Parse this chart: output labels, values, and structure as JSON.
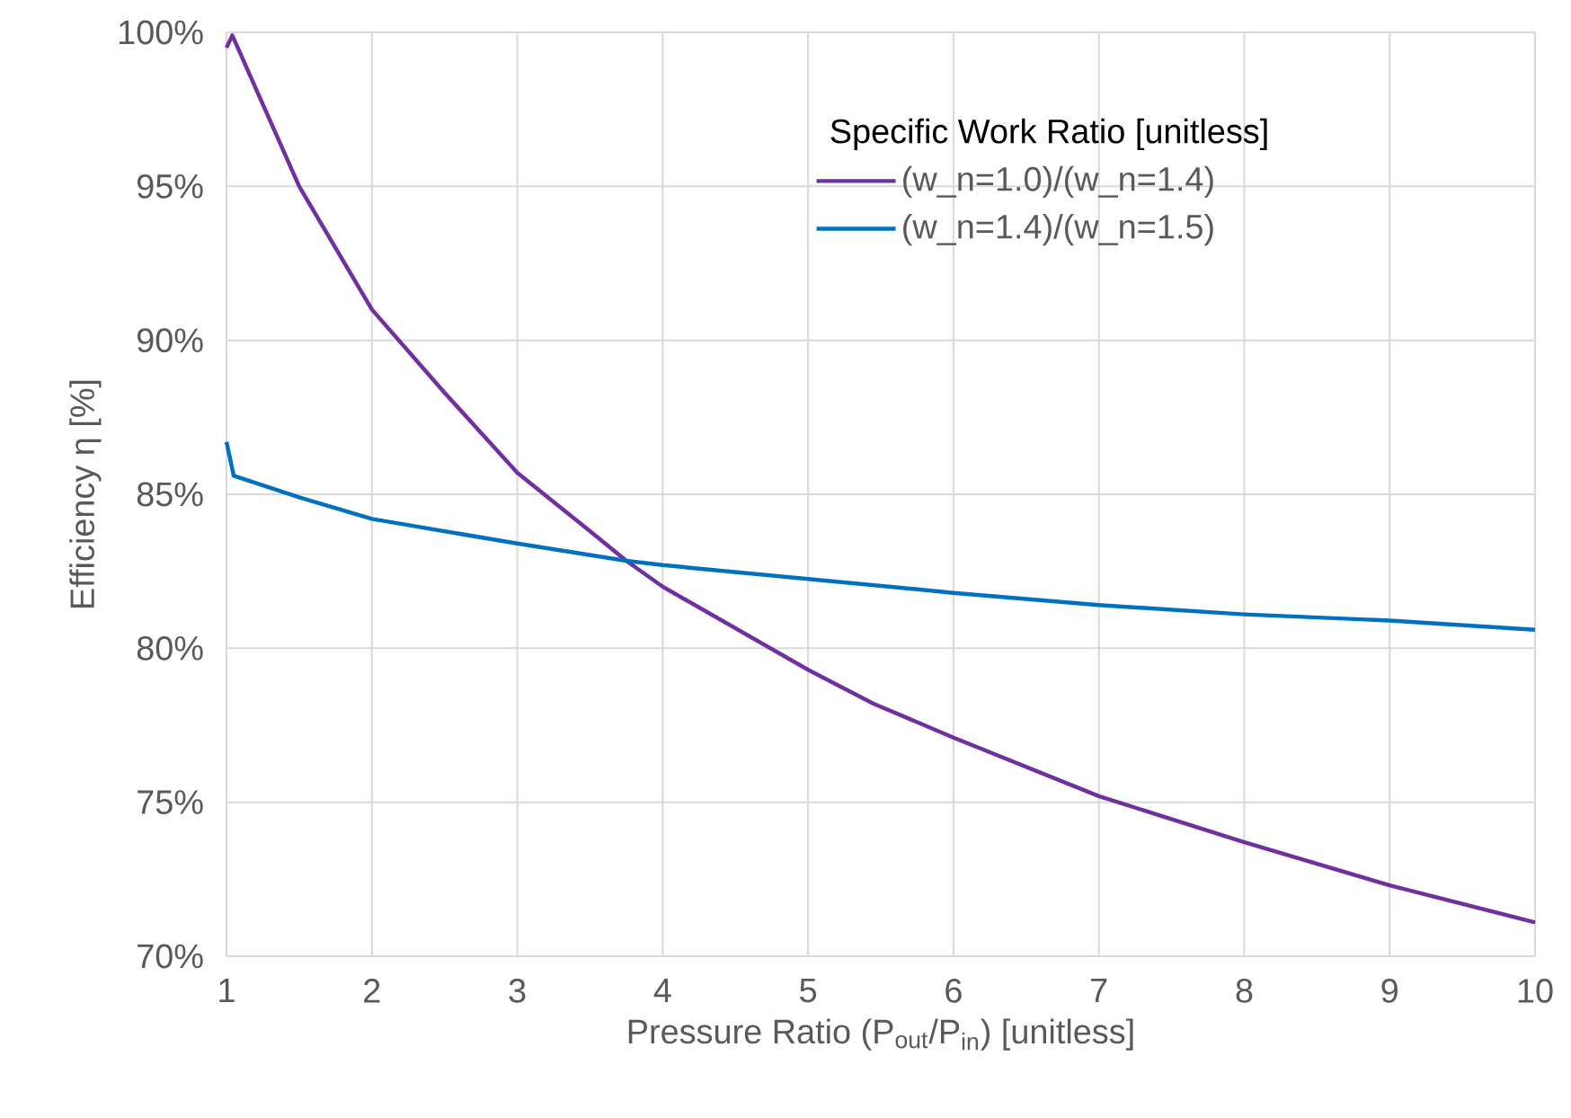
{
  "chart_data": {
    "type": "line",
    "xlabel": "Pressure Ratio (P$_{out}$/P$_{in}$) [unitless]",
    "ylabel": "Efficiency η [%]",
    "legend_title": "Specific Work Ratio [unitless]",
    "xlim": [
      1,
      10
    ],
    "xticks": [
      1,
      2,
      3,
      4,
      5,
      6,
      7,
      8,
      9,
      10
    ],
    "ylim": [
      70,
      100
    ],
    "yticks": [
      {
        "value": 70,
        "label": "70%"
      },
      {
        "value": 75,
        "label": "75%"
      },
      {
        "value": 80,
        "label": "80%"
      },
      {
        "value": 85,
        "label": "85%"
      },
      {
        "value": 90,
        "label": "90%"
      },
      {
        "value": 95,
        "label": "95%"
      },
      {
        "value": 100,
        "label": "100%"
      }
    ],
    "grid": true,
    "legend": "top right",
    "marker": "none",
    "line_style": "solid",
    "series": [
      {
        "name": "(w_n=1.0)/(w_n=1.4)",
        "color": "#7030a0",
        "x": [
          1,
          1.04,
          1.5,
          2,
          2.5,
          3,
          3.5,
          3.75,
          4,
          5,
          5.45,
          6,
          7,
          8,
          9,
          10
        ],
        "values": [
          99.5,
          99.9,
          95.0,
          91.0,
          88.3,
          85.7,
          83.8,
          82.84,
          82.0,
          79.3,
          78.2,
          77.1,
          75.2,
          73.7,
          72.3,
          71.1
        ]
      },
      {
        "name": "(w_n=1.4)/(w_n=1.5)",
        "color": "#0070c0",
        "x": [
          1,
          1.05,
          1.5,
          2,
          3,
          3.75,
          4,
          5,
          6,
          7,
          8,
          9,
          10
        ],
        "values": [
          86.7,
          85.6,
          84.9,
          84.2,
          83.4,
          82.84,
          82.7,
          82.25,
          81.8,
          81.4,
          81.1,
          80.9,
          80.6
        ]
      }
    ]
  }
}
